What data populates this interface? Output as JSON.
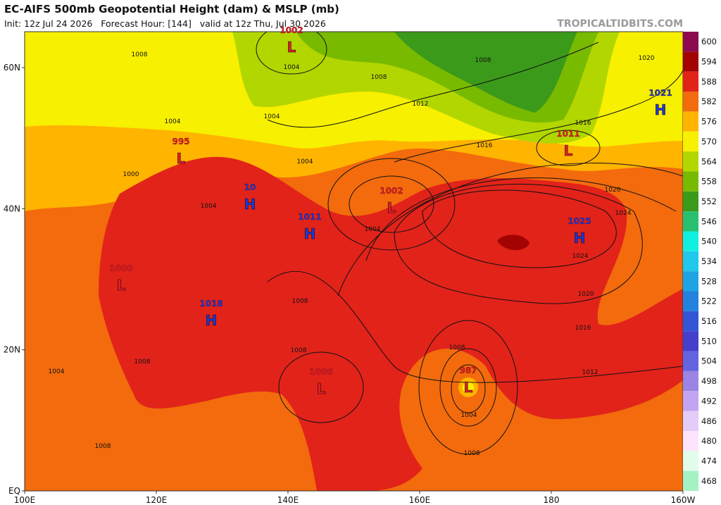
{
  "header": {
    "title": "EC-AIFS 500mb Geopotential Height (dam) & MSLP (mb)",
    "subtitle": "Init: 12z Jul 24 2026   Forecast Hour: [144]   valid at 12z Thu, Jul 30 2026",
    "watermark": "TROPICALTIDBITS.COM"
  },
  "map": {
    "lon_ticks": [
      {
        "value": 100,
        "label": "100E"
      },
      {
        "value": 120,
        "label": "120E"
      },
      {
        "value": 140,
        "label": "140E"
      },
      {
        "value": 160,
        "label": "160E"
      },
      {
        "value": 180,
        "label": "180"
      },
      {
        "value": 200,
        "label": "160W"
      }
    ],
    "lat_ticks": [
      {
        "value": 60,
        "label": "60N"
      },
      {
        "value": 40,
        "label": "40N"
      },
      {
        "value": 20,
        "label": "20N"
      },
      {
        "value": 0,
        "label": "EQ"
      }
    ],
    "centers": [
      {
        "letter": "L",
        "pressure": 1002
      },
      {
        "letter": "L",
        "pressure": 995
      },
      {
        "letter": "H",
        "pressure": 10
      },
      {
        "letter": "H",
        "pressure": 1011
      },
      {
        "letter": "L",
        "pressure": 1002
      },
      {
        "letter": "L",
        "pressure": 1011
      },
      {
        "letter": "H",
        "pressure": 1021
      },
      {
        "letter": "H",
        "pressure": 1025
      },
      {
        "letter": "L",
        "pressure": 1000
      },
      {
        "letter": "H",
        "pressure": 1018
      },
      {
        "letter": "L",
        "pressure": 1006
      },
      {
        "letter": "L",
        "pressure": 987
      }
    ],
    "isobar_labels": [
      1008,
      1004,
      1004,
      1004,
      1008,
      1004,
      1012,
      1008,
      1004,
      1016,
      1016,
      1020,
      1020,
      1024,
      1024,
      1020,
      1016,
      1012,
      1008,
      1004,
      1008,
      1008,
      1008,
      1008,
      1004,
      1000,
      1004,
      1008
    ]
  },
  "colorbar": {
    "levels": [
      600,
      594,
      588,
      582,
      576,
      570,
      564,
      558,
      552,
      546,
      540,
      534,
      528,
      522,
      516,
      510,
      504,
      498,
      492,
      486,
      480,
      474,
      468
    ],
    "colors": [
      "#8c0a50",
      "#a30303",
      "#e2231a",
      "#f36b0c",
      "#ffb400",
      "#f7f000",
      "#b2d600",
      "#78ba00",
      "#3b9a1a",
      "#28c070",
      "#10f0e0",
      "#20c8ec",
      "#1ea4e4",
      "#2282de",
      "#3256d6",
      "#4440cc",
      "#6464e0",
      "#9c84e4",
      "#c2a4f0",
      "#e4ccf8",
      "#fce4fc",
      "#e2fcec",
      "#a4f2c4"
    ]
  }
}
